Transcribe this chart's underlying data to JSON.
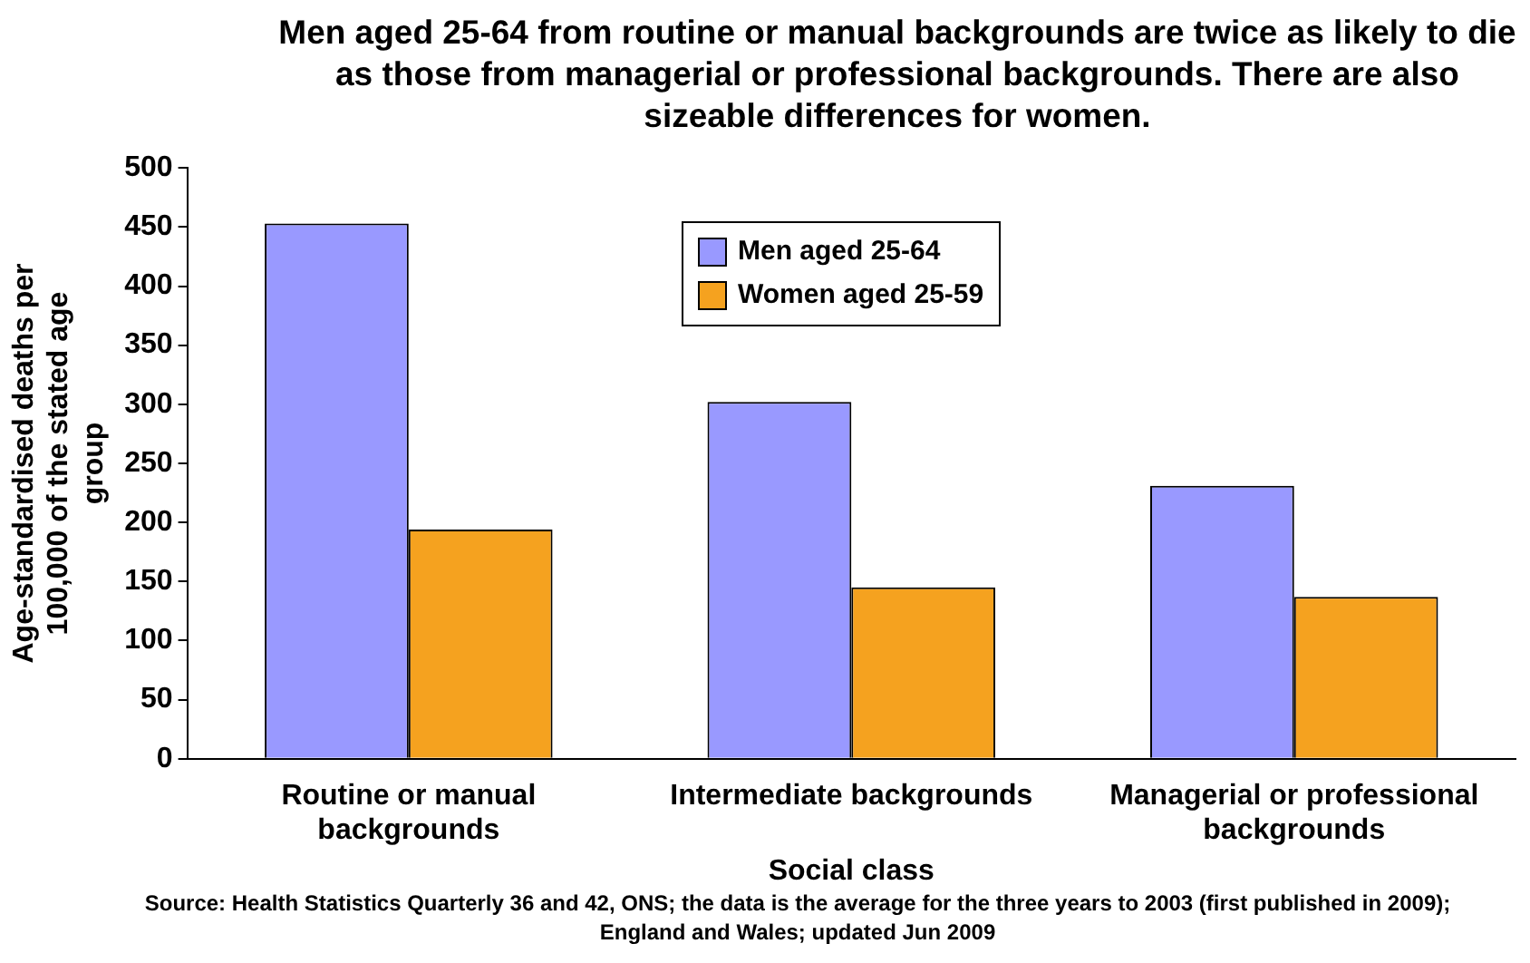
{
  "chart_data": {
    "type": "bar",
    "title": "Men aged 25-64 from routine or manual backgrounds are twice as likely to die as those from managerial or professional backgrounds. There are also sizeable differences for women.",
    "xlabel": "Social class",
    "ylabel": "Age-standardised deaths per 100,000 of the stated age group",
    "categories": [
      "Routine or manual backgrounds",
      "Intermediate backgrounds",
      "Managerial or professional backgrounds"
    ],
    "series": [
      {
        "name": "Men aged 25-64",
        "color": "#9999ff",
        "values": [
          453,
          302,
          231
        ]
      },
      {
        "name": "Women aged 25-59",
        "color": "#f5a21f",
        "values": [
          194,
          145,
          137
        ]
      }
    ],
    "ylim": [
      0,
      500
    ],
    "yticks": [
      0,
      50,
      100,
      150,
      200,
      250,
      300,
      350,
      400,
      450,
      500
    ],
    "grid": false,
    "legend": "top",
    "annotations": [
      "Source: Health Statistics Quarterly 36 and 42, ONS; the data is the average for the three years to 2003 (first published in 2009); England and Wales; updated Jun 2009"
    ]
  }
}
